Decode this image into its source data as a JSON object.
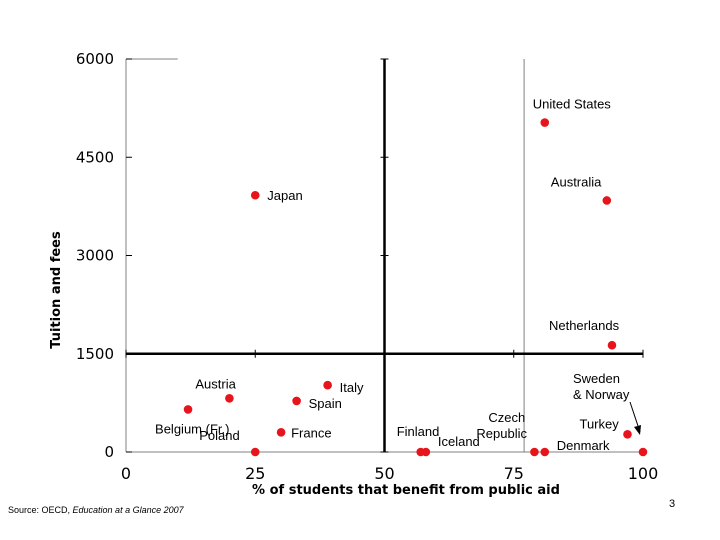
{
  "chart_data": {
    "type": "scatter",
    "title": "",
    "xlabel": "% of students that benefit from public aid",
    "ylabel": "Tuition and fees",
    "xlim": [
      0,
      100
    ],
    "ylim": [
      0,
      6000
    ],
    "x_ticks": [
      "0",
      "25",
      "50",
      "75",
      "100"
    ],
    "y_ticks": [
      "0",
      "1500",
      "3000",
      "4500",
      "6000"
    ],
    "x_tick_values": [
      0,
      25,
      50,
      75,
      100
    ],
    "y_tick_values": [
      0,
      1500,
      3000,
      4500,
      6000
    ],
    "grid": false,
    "reference_lines": {
      "x": 50,
      "y": 1500
    },
    "marker_color": "#e8141b",
    "points": [
      {
        "label": "United States",
        "x": 81,
        "y": 5030
      },
      {
        "label": "Australia",
        "x": 93,
        "y": 3840
      },
      {
        "label": "Japan",
        "x": 25,
        "y": 3920
      },
      {
        "label": "Netherlands",
        "x": 94,
        "y": 1630
      },
      {
        "label": "Austria",
        "x": 20,
        "y": 820
      },
      {
        "label": "Italy",
        "x": 39,
        "y": 1020
      },
      {
        "label": "Spain",
        "x": 33,
        "y": 780
      },
      {
        "label": "Belgium (Fr.)",
        "x": 12,
        "y": 650
      },
      {
        "label": "France",
        "x": 30,
        "y": 300
      },
      {
        "label": "Poland",
        "x": 25,
        "y": 0
      },
      {
        "label": "Finland",
        "x": 57,
        "y": 0
      },
      {
        "label": "Iceland",
        "x": 58,
        "y": 0
      },
      {
        "label": "Czech Republic",
        "x": 79,
        "y": 0
      },
      {
        "label": "Denmark",
        "x": 81,
        "y": 0
      },
      {
        "label": "Sweden & Norway",
        "x": 100,
        "y": 0
      },
      {
        "label": "Turkey",
        "x": 97,
        "y": 270
      }
    ]
  },
  "footer": {
    "source_prefix": "Source: OECD, ",
    "source_title": "Education at a Glance 2007",
    "slide_number": "3"
  }
}
